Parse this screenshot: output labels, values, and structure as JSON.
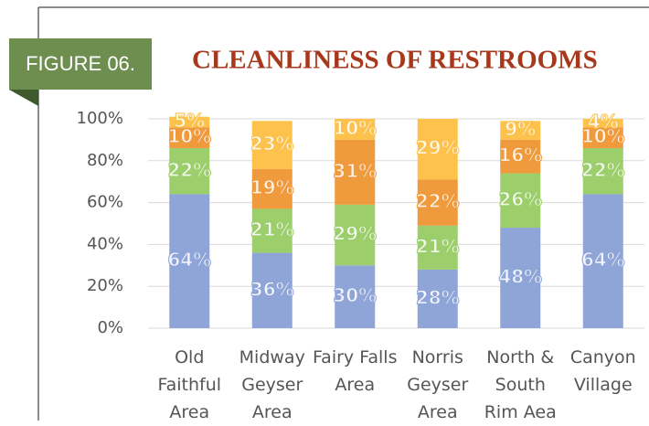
{
  "badge": "FIGURE 06.",
  "chart_data": {
    "type": "stacked_bar",
    "title": "CLEANLINESS OF RESTROOMS",
    "categories": [
      "Old Faithful Area",
      "Midway Geyser Area",
      "Fairy Falls Area",
      "Norris Geyser Area",
      "North & South Rim Aea",
      "Canyon Village"
    ],
    "series": [
      {
        "color": "#8fa5d8",
        "values": [
          64,
          36,
          30,
          28,
          48,
          64
        ],
        "value_labels": [
          "64%",
          "36%",
          "30%",
          "28%",
          "48%",
          "64%"
        ]
      },
      {
        "color": "#9ccf6c",
        "values": [
          22,
          21,
          29,
          21,
          26,
          22
        ],
        "value_labels": [
          "22%",
          "21%",
          "29%",
          "21%",
          "26%",
          "22%"
        ]
      },
      {
        "color": "#ef9a3c",
        "values": [
          10,
          19,
          31,
          22,
          16,
          10
        ],
        "value_labels": [
          "10%",
          "19%",
          "31%",
          "22%",
          "16%",
          "10%"
        ]
      },
      {
        "color": "#fcc24c",
        "values": [
          5,
          23,
          10,
          29,
          9,
          4
        ],
        "value_labels": [
          "5%",
          "23%",
          "10%",
          "29%",
          "9%",
          "4%"
        ]
      }
    ],
    "ylim": [
      0,
      100
    ],
    "yticks": [
      {
        "value": 0,
        "label": "0%"
      },
      {
        "value": 20,
        "label": "20%"
      },
      {
        "value": 40,
        "label": "40%"
      },
      {
        "value": 60,
        "label": "60%"
      },
      {
        "value": 80,
        "label": "80%"
      },
      {
        "value": 100,
        "label": "100%"
      }
    ],
    "grid": true
  }
}
